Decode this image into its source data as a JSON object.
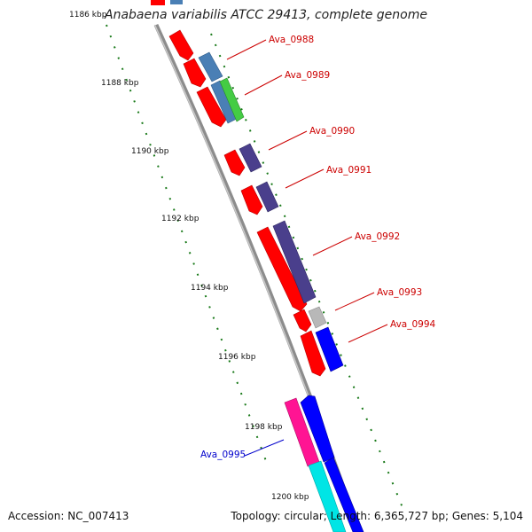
{
  "header": {
    "title": "Anabaena variabilis ATCC 29413, complete genome"
  },
  "footer": {
    "accession": "Accession: NC_007413",
    "summary": "Topology: circular; Length: 6,365,727 bp; Genes: 5,104"
  },
  "map": {
    "ticks": [
      {
        "label": "1186 kbp"
      },
      {
        "label": "1188 kbp"
      },
      {
        "label": "1190 kbp"
      },
      {
        "label": "1192 kbp"
      },
      {
        "label": "1194 kbp"
      },
      {
        "label": "1196 kbp"
      },
      {
        "label": "1198 kbp"
      },
      {
        "label": "1200 kbp"
      }
    ],
    "gene_labels": [
      {
        "text": "Ava_0988",
        "color": "#cc0000"
      },
      {
        "text": "Ava_0989",
        "color": "#cc0000"
      },
      {
        "text": "Ava_0990",
        "color": "#cc0000"
      },
      {
        "text": "Ava_0991",
        "color": "#cc0000"
      },
      {
        "text": "Ava_0992",
        "color": "#cc0000"
      },
      {
        "text": "Ava_0993",
        "color": "#cc0000"
      },
      {
        "text": "Ava_0994",
        "color": "#cc0000"
      },
      {
        "text": "Ava_0995",
        "color": "#0000cc"
      }
    ],
    "colors": {
      "backbone": "#8c8c8c",
      "tick": "#1a7a1a",
      "cds": "#ff0000",
      "gene_blue": "#4a7fb5",
      "gene_green": "#44cc44",
      "gene_purple": "#4a3f8c",
      "gene_gray": "#b8b8b8",
      "gene_bright_blue": "#0000ff",
      "gene_magenta": "#ff1493",
      "gene_cyan": "#00e5e5"
    }
  }
}
